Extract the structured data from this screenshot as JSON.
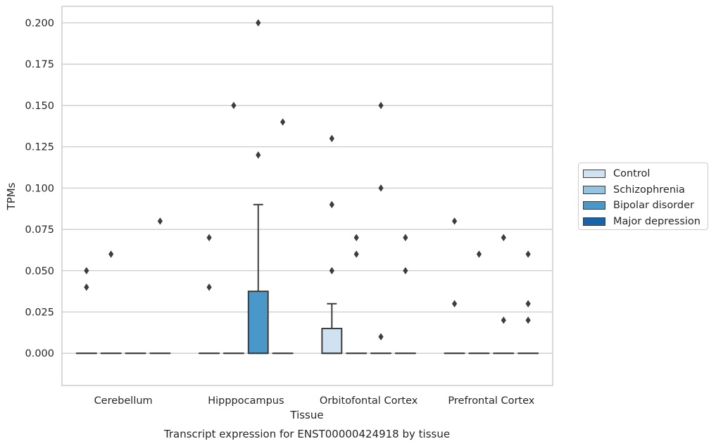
{
  "chart_data": {
    "type": "box",
    "title": "Transcript expression for ENST00000424918 by tissue",
    "xlabel": "Tissue",
    "ylabel": "TPMs",
    "ylim": [
      -0.0195,
      0.21
    ],
    "yticks": [
      0.0,
      0.025,
      0.05,
      0.075,
      0.1,
      0.125,
      0.15,
      0.175,
      0.2
    ],
    "ytick_labels": [
      "0.000",
      "0.025",
      "0.050",
      "0.075",
      "0.100",
      "0.125",
      "0.150",
      "0.175",
      "0.200"
    ],
    "categories": [
      "Cerebellum",
      "Hipppocampus",
      "Orbitofontal Cortex",
      "Prefrontal Cortex"
    ],
    "grid": true,
    "legend_position": "right",
    "series": [
      {
        "name": "Control",
        "color": "#d0e1f2",
        "boxes": [
          {
            "q1": 0,
            "median": 0,
            "q3": 0,
            "whisker_low": 0,
            "whisker_high": 0,
            "outliers": [
              0.04,
              0.05
            ]
          },
          {
            "q1": 0,
            "median": 0,
            "q3": 0,
            "whisker_low": 0,
            "whisker_high": 0,
            "outliers": [
              0.04,
              0.07
            ]
          },
          {
            "q1": 0,
            "median": 0,
            "q3": 0.015,
            "whisker_low": 0,
            "whisker_high": 0.03,
            "outliers": [
              0.05,
              0.09,
              0.13
            ]
          },
          {
            "q1": 0,
            "median": 0,
            "q3": 0,
            "whisker_low": 0,
            "whisker_high": 0,
            "outliers": [
              0.03,
              0.08
            ]
          }
        ]
      },
      {
        "name": "Schizophrenia",
        "color": "#94c4df",
        "boxes": [
          {
            "q1": 0,
            "median": 0,
            "q3": 0,
            "whisker_low": 0,
            "whisker_high": 0,
            "outliers": [
              0.06
            ]
          },
          {
            "q1": 0,
            "median": 0,
            "q3": 0,
            "whisker_low": 0,
            "whisker_high": 0,
            "outliers": [
              0.15
            ]
          },
          {
            "q1": 0,
            "median": 0,
            "q3": 0,
            "whisker_low": 0,
            "whisker_high": 0,
            "outliers": [
              0.06,
              0.07
            ]
          },
          {
            "q1": 0,
            "median": 0,
            "q3": 0,
            "whisker_low": 0,
            "whisker_high": 0,
            "outliers": [
              0.06
            ]
          }
        ]
      },
      {
        "name": "Bipolar disorder",
        "color": "#4a98c9",
        "boxes": [
          {
            "q1": 0,
            "median": 0,
            "q3": 0,
            "whisker_low": 0,
            "whisker_high": 0,
            "outliers": []
          },
          {
            "q1": 0,
            "median": 0,
            "q3": 0.0375,
            "whisker_low": 0,
            "whisker_high": 0.09,
            "outliers": [
              0.12,
              0.2
            ]
          },
          {
            "q1": 0,
            "median": 0,
            "q3": 0,
            "whisker_low": 0,
            "whisker_high": 0,
            "outliers": [
              0.01,
              0.1,
              0.15
            ]
          },
          {
            "q1": 0,
            "median": 0,
            "q3": 0,
            "whisker_low": 0,
            "whisker_high": 0,
            "outliers": [
              0.02,
              0.07
            ]
          }
        ]
      },
      {
        "name": "Major depression",
        "color": "#1764ab",
        "boxes": [
          {
            "q1": 0,
            "median": 0,
            "q3": 0,
            "whisker_low": 0,
            "whisker_high": 0,
            "outliers": [
              0.08
            ]
          },
          {
            "q1": 0,
            "median": 0,
            "q3": 0,
            "whisker_low": 0,
            "whisker_high": 0,
            "outliers": [
              0.14
            ]
          },
          {
            "q1": 0,
            "median": 0,
            "q3": 0,
            "whisker_low": 0,
            "whisker_high": 0,
            "outliers": [
              0.05,
              0.07
            ]
          },
          {
            "q1": 0,
            "median": 0,
            "q3": 0,
            "whisker_low": 0,
            "whisker_high": 0,
            "outliers": [
              0.02,
              0.03,
              0.06
            ]
          }
        ]
      }
    ]
  }
}
